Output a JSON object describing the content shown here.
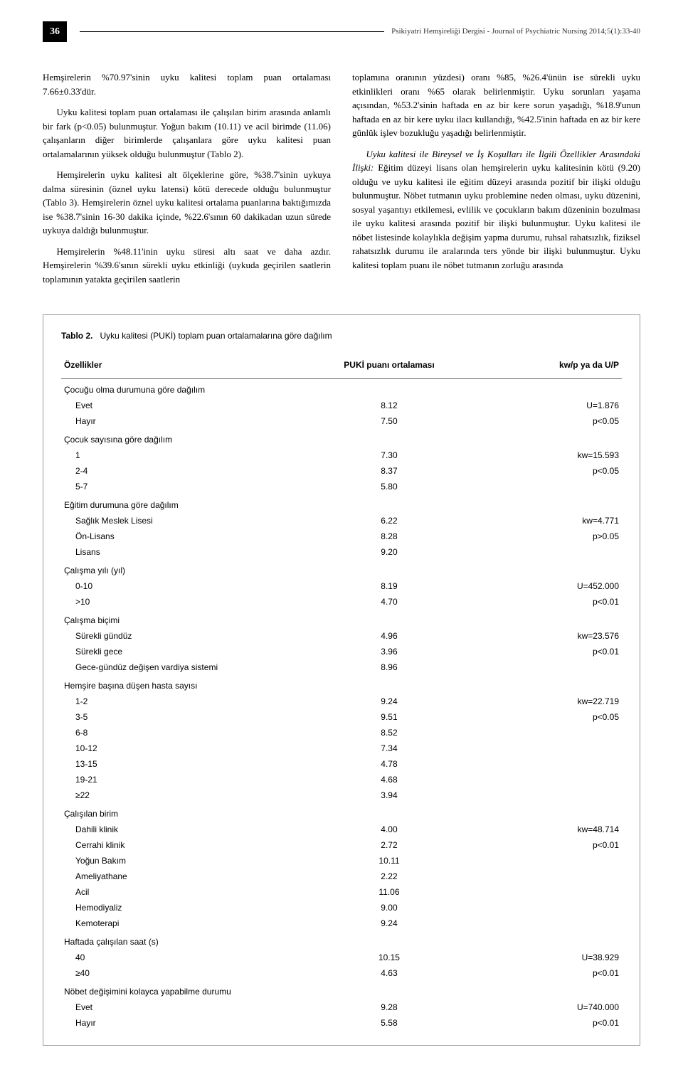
{
  "header": {
    "page_number": "36",
    "journal_name": "Psikiyatri Hemşireliği Dergisi - Journal of Psychiatric Nursing 2014;5(1):33-40"
  },
  "left_column": {
    "p1": "Hemşirelerin %70.97'sinin uyku kalitesi toplam puan ortalaması 7.66±0.33'dür.",
    "p2": "Uyku kalitesi toplam puan ortalaması ile çalışılan birim arasında anlamlı bir fark (p<0.05) bulunmuştur. Yoğun bakım (10.11) ve acil birimde (11.06) çalışanların diğer birimlerde çalışanlara göre uyku kalitesi puan ortalamalarının yüksek olduğu bulunmuştur (Tablo 2).",
    "p3": "Hemşirelerin uyku kalitesi alt ölçeklerine göre, %38.7'sinin uykuya dalma süresinin (öznel uyku latensi) kötü derecede olduğu bulunmuştur (Tablo 3). Hemşirelerin öznel uyku kalitesi ortalama puanlarına baktığımızda ise %38.7'sinin 16-30 dakika içinde, %22.6'sının 60 dakikadan uzun sürede uykuya daldığı bulunmuştur.",
    "p4": "Hemşirelerin %48.11'inin uyku süresi altı saat ve daha azdır. Hemşirelerin %39.6'sının sürekli uyku etkinliği (uykuda geçirilen saatlerin toplamının yatakta geçirilen saatlerin"
  },
  "right_column": {
    "p1": "toplamına oranının yüzdesi) oranı %85, %26.4'ünün ise sürekli uyku etkinlikleri oranı %65 olarak belirlenmiştir. Uyku sorunları yaşama açısından, %53.2'sinin haftada en az bir kere sorun yaşadığı, %18.9'unun haftada en az bir kere uyku ilacı kullandığı, %42.5'inin haftada en az bir kere günlük işlev bozukluğu yaşadığı belirlenmiştir.",
    "p2_italic": "Uyku kalitesi ile Bireysel ve İş Koşulları ile İlgili Özellikler Arasındaki İlişki:",
    "p2_rest": " Eğitim düzeyi lisans olan hemşirelerin uyku kalitesinin kötü (9.20) olduğu ve uyku kalitesi ile eğitim düzeyi arasında pozitif bir ilişki olduğu bulunmuştur. Nöbet tutmanın uyku problemine neden olması, uyku düzenini, sosyal yaşantıyı etkilemesi, evlilik ve çocukların bakım düzeninin bozulması ile uyku kalitesi arasında pozitif bir ilişki bulunmuştur. Uyku kalitesi ile nöbet listesinde kolaylıkla değişim yapma durumu, ruhsal rahatsızlık, fiziksel rahatsızlık durumu ile aralarında ters yönde bir ilişki bulunmuştur. Uyku kalitesi toplam puanı ile nöbet tutmanın zorluğu arasında"
  },
  "table": {
    "caption_num": "Tablo 2.",
    "caption_text": "Uyku kalitesi (PUKİ) toplam puan ortalamalarına göre dağılım",
    "headers": {
      "col1": "Özellikler",
      "col2": "PUKİ puanı ortalaması",
      "col3": "kw/p ya da U/P"
    },
    "groups": [
      {
        "label": "Çocuğu olma durumuna göre dağılım",
        "rows": [
          {
            "l": "Evet",
            "v": "8.12",
            "s": "U=1.876"
          },
          {
            "l": "Hayır",
            "v": "7.50",
            "s": "p<0.05"
          }
        ]
      },
      {
        "label": "Çocuk sayısına göre dağılım",
        "rows": [
          {
            "l": "1",
            "v": "7.30",
            "s": "kw=15.593"
          },
          {
            "l": "2-4",
            "v": "8.37",
            "s": "p<0.05"
          },
          {
            "l": "5-7",
            "v": "5.80",
            "s": ""
          }
        ]
      },
      {
        "label": "Eğitim durumuna göre dağılım",
        "rows": [
          {
            "l": "Sağlık Meslek Lisesi",
            "v": "6.22",
            "s": "kw=4.771"
          },
          {
            "l": "Ön-Lisans",
            "v": "8.28",
            "s": "p>0.05"
          },
          {
            "l": "Lisans",
            "v": "9.20",
            "s": ""
          }
        ]
      },
      {
        "label": "Çalışma yılı (yıl)",
        "rows": [
          {
            "l": "0-10",
            "v": "8.19",
            "s": "U=452.000"
          },
          {
            "l": ">10",
            "v": "4.70",
            "s": "p<0.01"
          }
        ]
      },
      {
        "label": "Çalışma biçimi",
        "rows": [
          {
            "l": "Sürekli gündüz",
            "v": "4.96",
            "s": "kw=23.576"
          },
          {
            "l": "Sürekli gece",
            "v": "3.96",
            "s": "p<0.01"
          },
          {
            "l": "Gece-gündüz değişen vardiya sistemi",
            "v": "8.96",
            "s": ""
          }
        ]
      },
      {
        "label": "Hemşire başına düşen hasta sayısı",
        "rows": [
          {
            "l": "1-2",
            "v": "9.24",
            "s": "kw=22.719"
          },
          {
            "l": "3-5",
            "v": "9.51",
            "s": "p<0.05"
          },
          {
            "l": "6-8",
            "v": "8.52",
            "s": ""
          },
          {
            "l": "10-12",
            "v": "7.34",
            "s": ""
          },
          {
            "l": "13-15",
            "v": "4.78",
            "s": ""
          },
          {
            "l": "19-21",
            "v": "4.68",
            "s": ""
          },
          {
            "l": "≥22",
            "v": "3.94",
            "s": ""
          }
        ]
      },
      {
        "label": "Çalışılan birim",
        "rows": [
          {
            "l": "Dahili klinik",
            "v": "4.00",
            "s": "kw=48.714"
          },
          {
            "l": "Cerrahi klinik",
            "v": "2.72",
            "s": "p<0.01"
          },
          {
            "l": "Yoğun Bakım",
            "v": "10.11",
            "s": ""
          },
          {
            "l": "Ameliyathane",
            "v": "2.22",
            "s": ""
          },
          {
            "l": "Acil",
            "v": "11.06",
            "s": ""
          },
          {
            "l": "Hemodiyaliz",
            "v": "9.00",
            "s": ""
          },
          {
            "l": "Kemoterapi",
            "v": "9.24",
            "s": ""
          }
        ]
      },
      {
        "label": "Haftada çalışılan saat (s)",
        "rows": [
          {
            "l": "40",
            "v": "10.15",
            "s": "U=38.929"
          },
          {
            "l": "≥40",
            "v": "4.63",
            "s": "p<0.01"
          }
        ]
      },
      {
        "label": "Nöbet değişimini kolayca yapabilme durumu",
        "rows": [
          {
            "l": "Evet",
            "v": "9.28",
            "s": "U=740.000"
          },
          {
            "l": "Hayır",
            "v": "5.58",
            "s": "p<0.01"
          }
        ]
      }
    ]
  }
}
